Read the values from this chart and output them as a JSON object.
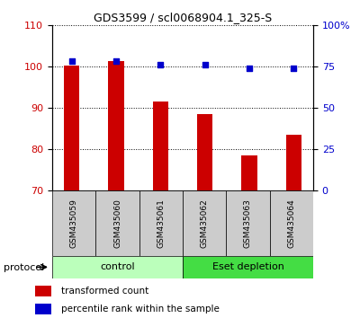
{
  "title": "GDS3599 / scl0068904.1_325-S",
  "samples": [
    "GSM435059",
    "GSM435060",
    "GSM435061",
    "GSM435062",
    "GSM435063",
    "GSM435064"
  ],
  "red_values": [
    100.2,
    101.3,
    91.5,
    88.5,
    78.5,
    83.5
  ],
  "blue_values": [
    78.5,
    78.5,
    76.0,
    76.0,
    74.0,
    74.0
  ],
  "left_ylim": [
    70,
    110
  ],
  "left_yticks": [
    70,
    80,
    90,
    100,
    110
  ],
  "right_ylim": [
    0,
    100
  ],
  "right_yticks": [
    0,
    25,
    50,
    75,
    100
  ],
  "right_yticklabels": [
    "0",
    "25",
    "50",
    "75",
    "100%"
  ],
  "bar_color": "#cc0000",
  "dot_color": "#0000cc",
  "bar_width": 0.35,
  "control_color": "#bbffbb",
  "eset_color": "#44dd44",
  "label_bg_color": "#cccccc",
  "legend_red_label": "transformed count",
  "legend_blue_label": "percentile rank within the sample",
  "protocol_label": "protocol"
}
